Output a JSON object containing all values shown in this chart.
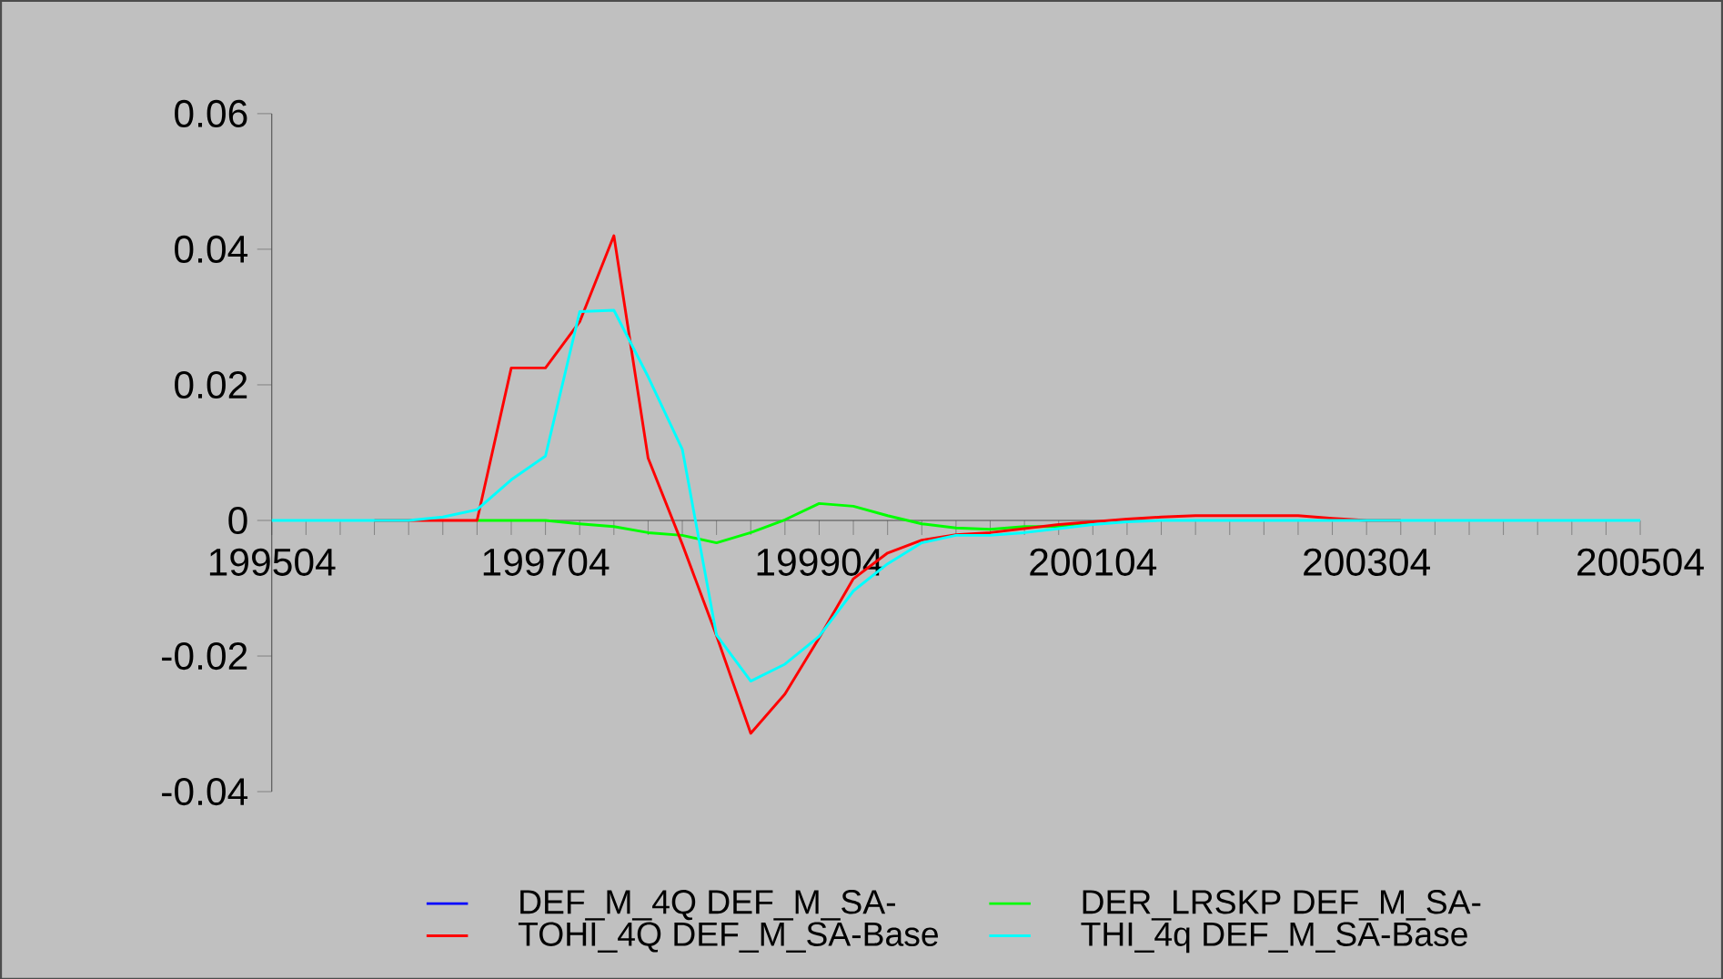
{
  "chart_data": {
    "type": "line",
    "categories": [
      "199504",
      null,
      null,
      null,
      null,
      null,
      null,
      null,
      "199704",
      null,
      null,
      null,
      null,
      null,
      null,
      null,
      "199904",
      null,
      null,
      null,
      null,
      null,
      null,
      null,
      "200104",
      null,
      null,
      null,
      null,
      null,
      null,
      null,
      "200304",
      null,
      null,
      null,
      null,
      null,
      null,
      null,
      "200504"
    ],
    "ylim": [
      -0.04,
      0.06
    ],
    "yticks": [
      -0.04,
      -0.02,
      0,
      0.02,
      0.04,
      0.06
    ],
    "legend": "bottom",
    "series": [
      {
        "name": "DEF_M_4Q DEF_M_SA-",
        "color": "#0000ff",
        "values": [
          null,
          null,
          null,
          null,
          null,
          null,
          null,
          null,
          null,
          null,
          null,
          null,
          null,
          null,
          null,
          null,
          null,
          null,
          null,
          null,
          null,
          null,
          null,
          null,
          null,
          null,
          null,
          null,
          null,
          null,
          null,
          null,
          null,
          null,
          null,
          null,
          null,
          null,
          null,
          null,
          null
        ]
      },
      {
        "name": "DER_LRSKP DEF_M_SA-",
        "color": "#00ff00",
        "values": [
          null,
          null,
          null,
          null,
          null,
          null,
          0,
          0,
          0,
          -0.0005,
          -0.0009,
          -0.0018,
          -0.0022,
          -0.0033,
          -0.0018,
          0.0001,
          0.0025,
          0.0021,
          0.0007,
          -0.0005,
          -0.0011,
          -0.0013,
          -0.0009,
          -0.0009,
          -0.0002,
          null,
          null,
          null,
          null,
          null,
          null,
          null,
          null,
          null,
          null,
          null,
          null,
          null,
          null,
          null,
          null
        ]
      },
      {
        "name": "TOHI_4Q DEF_M_SA-Base",
        "color": "#ff0000",
        "values": [
          null,
          null,
          null,
          0,
          0,
          0,
          0,
          0.0225,
          0.0225,
          0.0293,
          0.042,
          0.0092,
          -0.0035,
          -0.017,
          -0.0314,
          -0.0256,
          -0.0173,
          -0.0086,
          -0.0048,
          -0.0029,
          -0.0021,
          -0.0018,
          -0.0012,
          -0.0006,
          -0.0002,
          0.0002,
          0.0005,
          0.0007,
          0.0007,
          0.0007,
          0.0007,
          0.0003,
          0,
          0,
          null,
          null,
          null,
          null,
          null,
          null,
          null
        ]
      },
      {
        "name": "THI_4q DEF_M_SA-Base",
        "color": "#00ffff",
        "values": [
          0,
          0,
          0,
          0,
          0,
          0.0005,
          0.0016,
          0.006,
          0.0095,
          0.0308,
          0.031,
          0.0212,
          0.0105,
          -0.0169,
          -0.0237,
          -0.0212,
          -0.0171,
          -0.0104,
          -0.0064,
          -0.0033,
          -0.0022,
          -0.0022,
          -0.0018,
          -0.0012,
          -0.0006,
          -0.0002,
          0,
          0,
          0,
          0,
          0,
          0,
          0,
          0,
          0,
          0,
          0,
          0,
          0,
          0,
          0
        ]
      }
    ]
  }
}
